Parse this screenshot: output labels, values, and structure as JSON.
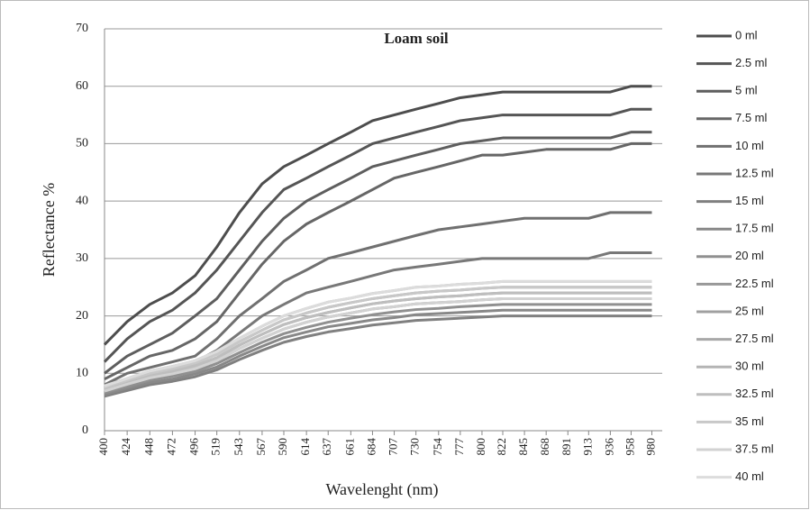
{
  "chart_data": {
    "type": "line",
    "title": "Loam soil",
    "x_label": "Wavelenght (nm)",
    "y_label": "Reflectance %",
    "x": [
      400,
      424,
      448,
      472,
      496,
      519,
      543,
      567,
      590,
      614,
      637,
      661,
      684,
      707,
      730,
      754,
      777,
      800,
      822,
      845,
      868,
      891,
      913,
      936,
      958,
      980
    ],
    "xlim": [
      400,
      991
    ],
    "xticks": [
      400,
      424,
      448,
      472,
      496,
      519,
      543,
      567,
      590,
      614,
      637,
      661,
      684,
      707,
      730,
      754,
      777,
      800,
      822,
      845,
      868,
      891,
      913,
      936,
      958,
      980
    ],
    "ylim": [
      0,
      70
    ],
    "yticks": [
      0,
      10,
      20,
      30,
      40,
      50,
      60,
      70
    ],
    "grid": true,
    "legend": "right",
    "series": [
      {
        "name": "0 ml",
        "color": "#4d4d4d",
        "values": [
          15,
          19,
          22,
          24,
          27,
          32,
          38,
          43,
          46,
          48,
          50,
          52,
          54,
          55,
          56,
          57,
          58,
          58.5,
          59,
          59,
          59,
          59,
          59,
          59,
          60,
          60
        ]
      },
      {
        "name": "2.5 ml",
        "color": "#555555",
        "values": [
          12,
          16,
          19,
          21,
          24,
          28,
          33,
          38,
          42,
          44,
          46,
          48,
          50,
          51,
          52,
          53,
          54,
          54.5,
          55,
          55,
          55,
          55,
          55,
          55,
          56,
          56
        ]
      },
      {
        "name": "5 ml",
        "color": "#5e5e5e",
        "values": [
          10,
          13,
          15,
          17,
          20,
          23,
          28,
          33,
          37,
          40,
          42,
          44,
          46,
          47,
          48,
          49,
          50,
          50.5,
          51,
          51,
          51,
          51,
          51,
          51,
          52,
          52
        ]
      },
      {
        "name": "7.5 ml",
        "color": "#666666",
        "values": [
          9,
          11,
          13,
          14,
          16,
          19,
          24,
          29,
          33,
          36,
          38,
          40,
          42,
          44,
          45,
          46,
          47,
          48,
          48,
          48.5,
          49,
          49,
          49,
          49,
          50,
          50
        ]
      },
      {
        "name": "10 ml",
        "color": "#707070",
        "values": [
          8,
          10,
          11,
          12,
          13,
          16,
          20,
          23,
          26,
          28,
          30,
          31,
          32,
          33,
          34,
          35,
          35.5,
          36,
          36.5,
          37,
          37,
          37,
          37,
          38,
          38,
          38
        ]
      },
      {
        "name": "12.5 ml",
        "color": "#787878",
        "values": [
          8,
          9,
          10,
          11,
          12,
          14,
          17,
          20,
          22,
          24,
          25,
          26,
          27,
          28,
          28.5,
          29,
          29.5,
          30,
          30,
          30,
          30,
          30,
          30,
          31,
          31,
          31
        ]
      },
      {
        "name": "15 ml",
        "color": "#808080",
        "values": [
          6,
          7,
          8,
          8.6,
          9.4,
          10.6,
          12.4,
          14,
          15.4,
          16.4,
          17.2,
          17.8,
          18.4,
          18.8,
          19.2,
          19.4,
          19.6,
          19.8,
          20,
          20,
          20,
          20,
          20,
          20,
          20,
          20
        ]
      },
      {
        "name": "17.5 ml",
        "color": "#888888",
        "values": [
          6.3,
          7.4,
          8.4,
          9,
          9.9,
          11.1,
          13,
          14.7,
          16.2,
          17.2,
          18.1,
          18.7,
          19.3,
          19.7,
          20.2,
          20.4,
          20.6,
          20.8,
          21,
          21,
          21,
          21,
          21,
          21,
          21,
          21
        ]
      },
      {
        "name": "20 ml",
        "color": "#909090",
        "values": [
          6.6,
          7.7,
          8.8,
          9.5,
          10.3,
          11.7,
          13.6,
          15.4,
          16.9,
          18,
          18.9,
          19.6,
          20.2,
          20.7,
          21.1,
          21.3,
          21.6,
          21.8,
          22,
          22,
          22,
          22,
          22,
          22,
          22,
          22
        ]
      },
      {
        "name": "22.5 ml",
        "color": "#989898",
        "values": [
          6.9,
          8.1,
          9.2,
          9.9,
          10.8,
          12.2,
          14.3,
          16.1,
          17.7,
          18.9,
          19.8,
          20.5,
          21.2,
          21.6,
          22.1,
          22.3,
          22.5,
          22.8,
          23,
          23,
          23,
          23,
          23,
          23,
          23,
          23
        ]
      },
      {
        "name": "25 ml",
        "color": "#a0a0a0",
        "values": [
          7.2,
          8.4,
          9.6,
          10.3,
          11.3,
          12.7,
          14.9,
          16.8,
          18.5,
          19.7,
          20.6,
          21.4,
          22.1,
          22.6,
          23,
          23.3,
          23.5,
          23.8,
          24,
          24,
          24,
          24,
          24,
          24,
          24,
          24
        ]
      },
      {
        "name": "27.5 ml",
        "color": "#a8a8a8",
        "values": [
          7.5,
          8.8,
          10,
          10.8,
          11.8,
          13.3,
          15.5,
          17.5,
          19.3,
          20.5,
          21.5,
          22.3,
          23,
          23.5,
          24,
          24.3,
          24.5,
          24.8,
          25,
          25,
          25,
          25,
          25,
          25,
          25,
          25
        ]
      },
      {
        "name": "30 ml",
        "color": "#b4b4b4",
        "values": [
          7.8,
          9.1,
          10.4,
          11.2,
          12.2,
          13.8,
          16.1,
          18.2,
          20,
          21.3,
          22.4,
          23.1,
          23.9,
          24.4,
          25,
          25.2,
          25.5,
          25.7,
          26,
          26,
          26,
          26,
          26,
          26,
          26,
          26
        ]
      },
      {
        "name": "32.5 ml",
        "color": "#bebebe",
        "values": [
          7.2,
          8.4,
          9.6,
          10.3,
          11.3,
          12.7,
          14.9,
          16.8,
          18.5,
          19.7,
          20.6,
          21.4,
          22.1,
          22.6,
          23,
          23.3,
          23.5,
          23.8,
          24,
          24,
          24,
          24,
          24,
          24,
          24,
          24
        ]
      },
      {
        "name": "35 ml",
        "color": "#c8c8c8",
        "values": [
          7.5,
          8.8,
          10,
          10.8,
          11.8,
          13.3,
          15.5,
          17.5,
          19.3,
          20.5,
          21.5,
          22.3,
          23,
          23.5,
          24,
          24.3,
          24.5,
          24.8,
          25,
          25,
          25,
          25,
          25,
          25,
          25,
          25
        ]
      },
      {
        "name": "37.5 ml",
        "color": "#d2d2d2",
        "values": [
          6.9,
          8.1,
          9.2,
          9.9,
          10.8,
          12.2,
          14.3,
          16.1,
          17.7,
          18.9,
          19.8,
          20.5,
          21.2,
          21.6,
          22.1,
          22.3,
          22.5,
          22.8,
          23,
          23,
          23,
          23,
          23,
          23,
          23,
          23
        ]
      },
      {
        "name": "40 ml",
        "color": "#dcdcdc",
        "values": [
          7.8,
          9.1,
          10.4,
          11.2,
          12.2,
          13.8,
          16.1,
          18.2,
          20,
          21.3,
          22.4,
          23.1,
          23.9,
          24.4,
          25,
          25.2,
          25.5,
          25.7,
          26,
          26,
          26,
          26,
          26,
          26,
          26,
          26
        ]
      }
    ]
  }
}
